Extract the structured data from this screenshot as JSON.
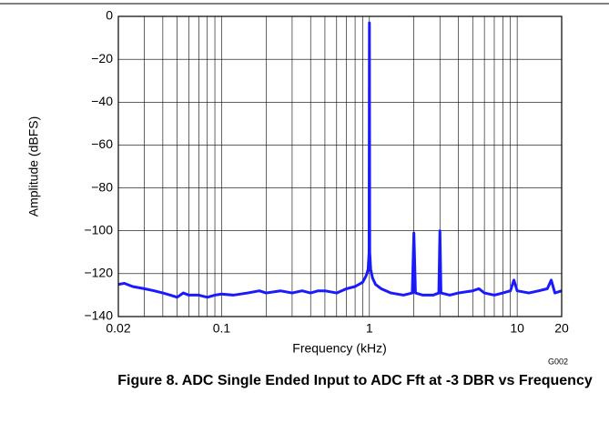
{
  "chart_data": {
    "type": "line",
    "title": "Figure 8. ADC Single Ended Input to ADC Fft at -3 DBR vs Frequency",
    "x_label": "Frequency (kHz)",
    "y_label": "Amplitude (dBFS)",
    "figure_id": "G002",
    "x_scale": "log",
    "grid": true,
    "xlim": [
      0.02,
      20
    ],
    "xticks": [
      0.02,
      0.1,
      1,
      10,
      20
    ],
    "x_minor_ticks": [
      0.03,
      0.04,
      0.05,
      0.06,
      0.07,
      0.08,
      0.09,
      0.2,
      0.3,
      0.4,
      0.5,
      0.6,
      0.7,
      0.8,
      0.9,
      2,
      3,
      4,
      5,
      6,
      7,
      8,
      9
    ],
    "ylim": [
      -140,
      0
    ],
    "yticks": [
      {
        "value": -140,
        "label": "−140"
      },
      {
        "value": -120,
        "label": "−120"
      },
      {
        "value": -100,
        "label": "−100"
      },
      {
        "value": -80,
        "label": "−80"
      },
      {
        "value": -60,
        "label": "−60"
      },
      {
        "value": -40,
        "label": "−40"
      },
      {
        "value": -20,
        "label": "−20"
      },
      0
    ],
    "x": [
      0.02,
      0.022,
      0.025,
      0.03,
      0.035,
      0.04,
      0.045,
      0.05,
      0.055,
      0.06,
      0.07,
      0.08,
      0.09,
      0.1,
      0.12,
      0.15,
      0.18,
      0.2,
      0.25,
      0.3,
      0.35,
      0.4,
      0.45,
      0.5,
      0.6,
      0.7,
      0.8,
      0.9,
      0.95,
      0.98,
      0.995,
      1.0,
      1.005,
      1.02,
      1.05,
      1.1,
      1.2,
      1.4,
      1.7,
      1.95,
      2.0,
      2.05,
      2.3,
      2.7,
      2.95,
      3.0,
      3.05,
      3.5,
      4,
      5,
      5.5,
      6,
      7,
      8,
      9,
      9.5,
      10,
      12,
      14,
      16,
      17,
      18,
      20
    ],
    "series": [
      {
        "color": "#1a1aff",
        "values": [
          -125,
          -124.5,
          -126,
          -127,
          -128,
          -129,
          -130,
          -131,
          -129,
          -130,
          -130,
          -131,
          -130,
          -129.5,
          -130,
          -129,
          -128,
          -129,
          -128,
          -129,
          -128,
          -129,
          -128,
          -128,
          -129,
          -127,
          -126,
          -124,
          -121,
          -118,
          -110,
          -3,
          -110,
          -118,
          -122,
          -125,
          -127,
          -129,
          -130,
          -129,
          -101,
          -129,
          -130,
          -130,
          -129,
          -100,
          -129,
          -130,
          -129,
          -128,
          -127,
          -129,
          -130,
          -129,
          -128,
          -123,
          -128,
          -129,
          -128,
          -127,
          -123,
          -129,
          -128
        ]
      }
    ]
  }
}
